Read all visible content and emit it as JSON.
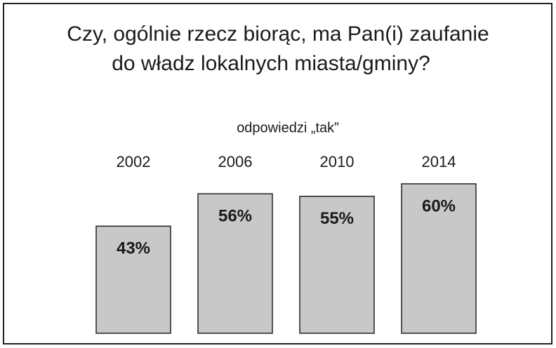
{
  "chart_data": {
    "type": "bar",
    "title": [
      "Czy, ogólnie rzecz biorąc, ma Pan(i) zaufanie",
      "do władz lokalnych miasta/gminy?"
    ],
    "subtitle": "odpowiedzi „tak”",
    "categories": [
      "2002",
      "2006",
      "2010",
      "2014"
    ],
    "values": [
      43,
      56,
      55,
      60
    ],
    "value_labels": [
      "43%",
      "56%",
      "55%",
      "60%"
    ],
    "color": "#c8c8c8"
  }
}
